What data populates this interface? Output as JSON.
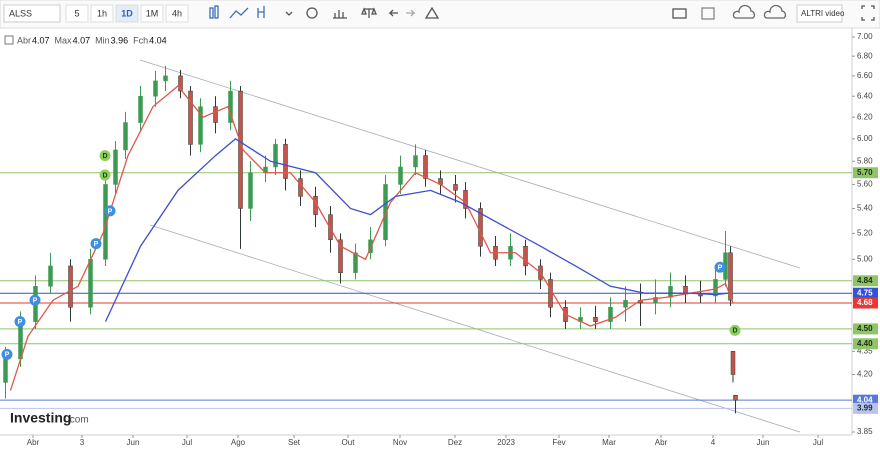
{
  "toolbar": {
    "symbol": "ALSS",
    "intervals": [
      "5",
      "1h",
      "1D",
      "1M",
      "4h"
    ],
    "active_interval": 2,
    "video_button": "ALTRI video"
  },
  "chart_data": {
    "type": "candlestick",
    "legend": [
      {
        "label": "Abr",
        "value": "4.07"
      },
      {
        "label": "Max",
        "value": "4.07"
      },
      {
        "label": "Min",
        "value": "3.96"
      },
      {
        "label": "Fch",
        "value": "4.04"
      }
    ],
    "logo": {
      "brand": "Investing",
      "suffix": ".com"
    },
    "log_scale": true,
    "xlim": [
      0,
      339
    ],
    "xticks": [
      {
        "value": 12,
        "label": "Abr"
      },
      {
        "value": 31.6,
        "label": "3"
      },
      {
        "value": 52,
        "label": "Jun"
      },
      {
        "value": 73.6,
        "label": "Jul"
      },
      {
        "value": 94,
        "label": "Ago"
      },
      {
        "value": 116.4,
        "label": "Set"
      },
      {
        "value": 138,
        "label": "Out"
      },
      {
        "value": 158.8,
        "label": "Nov"
      },
      {
        "value": 180.8,
        "label": "Dez"
      },
      {
        "value": 201.2,
        "label": "2023"
      },
      {
        "value": 222.4,
        "label": "Fev"
      },
      {
        "value": 242.4,
        "label": "Mar"
      },
      {
        "value": 263.2,
        "label": "Abr"
      },
      {
        "value": 284,
        "label": "4"
      },
      {
        "value": 304,
        "label": "Jun"
      },
      {
        "value": 326,
        "label": "Jul"
      }
    ],
    "ylim": [
      3.85,
      7.0
    ],
    "yticks": [
      {
        "value": 7.0,
        "label": "7.00"
      },
      {
        "value": 6.8,
        "label": "6.80"
      },
      {
        "value": 6.6,
        "label": "6.60"
      },
      {
        "value": 6.4,
        "label": "6.40"
      },
      {
        "value": 6.2,
        "label": "6.20"
      },
      {
        "value": 6.0,
        "label": "6.00"
      },
      {
        "value": 5.8,
        "label": "5.80"
      },
      {
        "value": 5.6,
        "label": "5.60"
      },
      {
        "value": 5.4,
        "label": "5.40"
      },
      {
        "value": 5.2,
        "label": "5.20"
      },
      {
        "value": 5.0,
        "label": "5.00"
      },
      {
        "value": 4.35,
        "label": "4.35"
      },
      {
        "value": 4.2,
        "label": "4.20"
      },
      {
        "value": 3.85,
        "label": "3.85"
      }
    ],
    "up_color": "#3c9a52",
    "down_color": "#2f3a33",
    "x": [
      1,
      7,
      13,
      19,
      27,
      35,
      41,
      45,
      49,
      55,
      61,
      65,
      71,
      75,
      79,
      85,
      91,
      95,
      99,
      105,
      109,
      113,
      119,
      125,
      131,
      135,
      141,
      147,
      153,
      159,
      165,
      169,
      175,
      181,
      185,
      191,
      197,
      203,
      209,
      215,
      219,
      225,
      231,
      237,
      243,
      249,
      255,
      261,
      267,
      273,
      279,
      285,
      289,
      291,
      292,
      293
    ],
    "open": [
      4.15,
      4.3,
      4.55,
      4.8,
      4.95,
      4.65,
      5.0,
      5.6,
      5.9,
      6.15,
      6.4,
      6.55,
      6.6,
      6.45,
      5.95,
      6.3,
      6.15,
      6.45,
      5.4,
      5.7,
      5.75,
      5.95,
      5.65,
      5.5,
      5.35,
      5.15,
      4.9,
      5.05,
      5.15,
      5.6,
      5.75,
      5.85,
      5.65,
      5.6,
      5.55,
      5.4,
      5.1,
      5.0,
      5.1,
      4.95,
      4.85,
      4.65,
      4.55,
      4.58,
      4.55,
      4.65,
      4.7,
      4.68,
      4.72,
      4.8,
      4.75,
      4.73,
      4.85,
      5.05,
      4.35,
      4.07
    ],
    "high": [
      4.38,
      4.62,
      4.88,
      5.05,
      5.0,
      5.08,
      5.68,
      5.98,
      6.25,
      6.5,
      6.65,
      6.7,
      6.66,
      6.5,
      6.38,
      6.4,
      6.55,
      6.5,
      5.8,
      5.85,
      6.0,
      6.0,
      5.72,
      5.58,
      5.42,
      5.2,
      5.12,
      5.25,
      5.68,
      5.85,
      5.95,
      5.9,
      5.72,
      5.68,
      5.62,
      5.45,
      5.18,
      5.2,
      5.15,
      5.0,
      4.9,
      4.7,
      4.65,
      4.66,
      4.72,
      4.8,
      4.82,
      4.85,
      4.9,
      4.88,
      4.84,
      4.92,
      5.22,
      5.1,
      4.35,
      4.07
    ],
    "low": [
      4.05,
      4.25,
      4.5,
      4.75,
      4.55,
      4.6,
      4.95,
      5.52,
      5.82,
      6.08,
      6.3,
      6.45,
      6.38,
      5.85,
      5.88,
      6.05,
      6.08,
      5.08,
      5.3,
      5.62,
      5.68,
      5.55,
      5.42,
      5.25,
      5.05,
      4.82,
      4.85,
      5.0,
      5.1,
      5.52,
      5.68,
      5.58,
      5.52,
      5.45,
      5.32,
      5.02,
      4.95,
      4.95,
      4.88,
      4.78,
      4.58,
      4.5,
      4.5,
      4.5,
      4.5,
      4.55,
      4.52,
      4.6,
      4.65,
      4.68,
      4.68,
      4.68,
      4.8,
      4.66,
      4.15,
      3.96
    ],
    "close": [
      4.3,
      4.55,
      4.8,
      4.95,
      4.65,
      5.0,
      5.6,
      5.9,
      6.15,
      6.4,
      6.55,
      6.6,
      6.45,
      5.95,
      6.3,
      6.15,
      6.45,
      5.4,
      5.7,
      5.75,
      5.95,
      5.65,
      5.5,
      5.35,
      5.15,
      4.9,
      5.05,
      5.15,
      5.6,
      5.75,
      5.85,
      5.65,
      5.6,
      5.55,
      5.4,
      5.1,
      5.0,
      5.1,
      4.95,
      4.85,
      4.65,
      4.55,
      4.58,
      4.55,
      4.65,
      4.7,
      4.68,
      4.72,
      4.8,
      4.75,
      4.73,
      4.85,
      5.05,
      4.7,
      4.2,
      4.04
    ],
    "series": [
      {
        "color": "#e0574a",
        "x": [
          3,
          10,
          20,
          30,
          40,
          50,
          60,
          70,
          80,
          90,
          96,
          105,
          115,
          125,
          135,
          145,
          155,
          165,
          175,
          185,
          195,
          205,
          215,
          225,
          235,
          245,
          255,
          265,
          275,
          285,
          289,
          292
        ],
        "values": [
          4.1,
          4.45,
          4.7,
          4.8,
          5.2,
          5.85,
          6.3,
          6.5,
          6.2,
          6.3,
          5.9,
          5.7,
          5.7,
          5.45,
          5.1,
          5.0,
          5.45,
          5.7,
          5.6,
          5.45,
          5.05,
          5.05,
          4.9,
          4.6,
          4.52,
          4.58,
          4.7,
          4.72,
          4.75,
          4.78,
          4.82,
          4.68
        ]
      },
      {
        "color": "#3d4fd1",
        "x": [
          41,
          55,
          70,
          85,
          93,
          107,
          125,
          139,
          147,
          157,
          171,
          183,
          201,
          215,
          229,
          243,
          257,
          275,
          285,
          290
        ],
        "values": [
          4.55,
          5.1,
          5.55,
          5.85,
          6.0,
          5.8,
          5.7,
          5.4,
          5.35,
          5.5,
          5.55,
          5.45,
          5.25,
          5.1,
          4.95,
          4.8,
          4.75,
          4.75,
          4.74,
          4.75
        ]
      }
    ],
    "price_lines": [
      {
        "value": 5.7,
        "label": "5.70",
        "color": "#8fc46a",
        "text_color": "#1f2d12"
      },
      {
        "value": 4.84,
        "label": "4.84",
        "color": "#8fc46a",
        "text_color": "#1f2d12"
      },
      {
        "value": 4.75,
        "label": "4.75",
        "color": "#3550d6",
        "text_color": "#ffffff"
      },
      {
        "value": 4.68,
        "label": "4.68",
        "color": "#e53935",
        "text_color": "#ffffff"
      },
      {
        "value": 4.5,
        "label": "4.50",
        "color": "#8fc46a",
        "text_color": "#1f2d12"
      },
      {
        "value": 4.4,
        "label": "4.40",
        "color": "#8fc46a",
        "text_color": "#1f2d12"
      },
      {
        "value": 4.04,
        "label": "4.04",
        "color": "#5a78d8",
        "text_color": "#ffffff"
      },
      {
        "value": 3.99,
        "label": "3.99",
        "color": "#b9c5e8",
        "text_color": "#1c2440"
      }
    ],
    "markers": [
      {
        "label": "P",
        "x": 1.6,
        "y": 4.33,
        "color": "#3f8ee0"
      },
      {
        "label": "P",
        "x": 6.8,
        "y": 4.55,
        "color": "#3f8ee0"
      },
      {
        "label": "P",
        "x": 12.8,
        "y": 4.7,
        "color": "#3f8ee0"
      },
      {
        "label": "P",
        "x": 37.2,
        "y": 5.12,
        "color": "#3f8ee0"
      },
      {
        "label": "D",
        "x": 40.8,
        "y": 5.85,
        "color": "#8ccf5c"
      },
      {
        "label": "D",
        "x": 40.8,
        "y": 5.68,
        "color": "#8ccf5c"
      },
      {
        "label": "P",
        "x": 42.8,
        "y": 5.38,
        "color": "#3f8ee0"
      },
      {
        "label": "P",
        "x": 286.8,
        "y": 4.94,
        "color": "#3f8ee0"
      },
      {
        "label": "D",
        "x": 292.8,
        "y": 4.49,
        "color": "#8ccf5c"
      }
    ]
  }
}
